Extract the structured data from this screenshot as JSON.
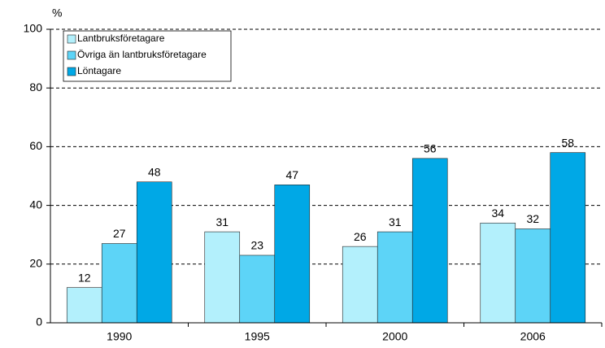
{
  "chart_data": {
    "type": "bar",
    "y_unit": "%",
    "categories": [
      "1990",
      "1995",
      "2000",
      "2006"
    ],
    "series": [
      {
        "name": "Lantbruksföretagare",
        "color": "#b3f0fc",
        "values": [
          12,
          31,
          26,
          34
        ]
      },
      {
        "name": "Övriga än lantbruksföretagare",
        "color": "#5dd4f7",
        "values": [
          27,
          23,
          31,
          32
        ]
      },
      {
        "name": "Löntagare",
        "color": "#00a8e6",
        "values": [
          48,
          47,
          56,
          58
        ]
      }
    ],
    "ylim": [
      0,
      100
    ],
    "yticks": [
      0,
      20,
      40,
      60,
      80,
      100
    ],
    "grid": true,
    "legend": "top-left"
  }
}
